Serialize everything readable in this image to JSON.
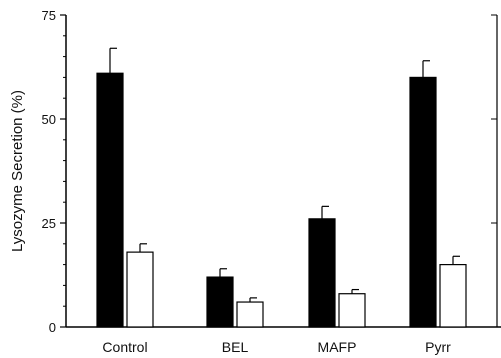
{
  "chart_data": {
    "type": "bar",
    "categories": [
      "Control",
      "BEL",
      "MAFP",
      "Pyrr"
    ],
    "ylabel": "Lysozyme Secretion (%)",
    "xlabel": "",
    "ylim": [
      0,
      75
    ],
    "yticks": [
      0,
      25,
      50,
      75
    ],
    "grid": false,
    "series": [
      {
        "values": [
          61,
          12,
          26,
          60
        ],
        "errors": [
          6,
          2,
          3,
          4
        ],
        "color": "#000000"
      },
      {
        "values": [
          18,
          6,
          8,
          15
        ],
        "errors": [
          2,
          1,
          1,
          2
        ],
        "color": "#ffffff"
      }
    ]
  }
}
